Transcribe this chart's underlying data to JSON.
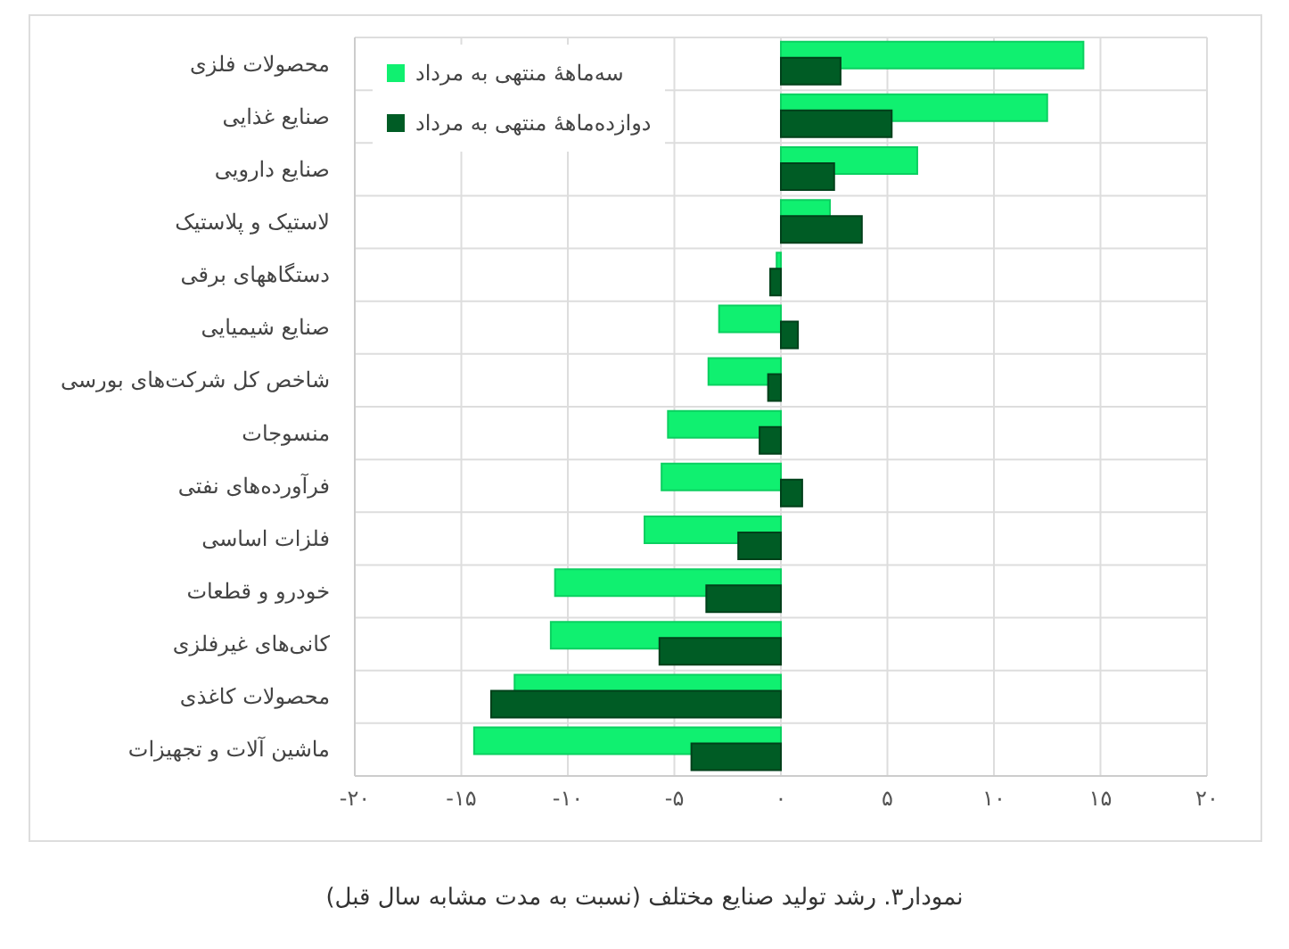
{
  "chart_data": {
    "type": "bar",
    "orientation": "horizontal",
    "title": "نمودار۳. رشد تولید صنایع مختلف (نسبت به مدت مشابه سال قبل)",
    "categories": [
      "محصولات فلزی",
      "صنایع غذایی",
      "صنایع دارویی",
      "لاستیک و پلاستیک",
      "دستگاههای برقی",
      "صنایع شیمیایی",
      "شاخص کل شرکت‌های بورسی",
      "منسوجات",
      "فرآورده‌های نفتی",
      "فلزات اساسی",
      "خودرو و قطعات",
      "کانی‌های غیرفلزی",
      "محصولات کاغذی",
      "ماشین آلات و تجهیزات"
    ],
    "series": [
      {
        "name": "سه‌ماههٔ منتهی به مرداد",
        "color": "#10f070",
        "values": [
          14.2,
          12.5,
          6.4,
          2.3,
          -0.2,
          -2.9,
          -3.4,
          -5.3,
          -5.6,
          -6.4,
          -10.6,
          -10.8,
          -12.5,
          -14.4
        ]
      },
      {
        "name": "دوازده‌ماههٔ منتهی به مرداد",
        "color": "#005c25",
        "values": [
          2.8,
          5.2,
          2.5,
          3.8,
          -0.5,
          0.8,
          -0.6,
          -1.0,
          1.0,
          -2.0,
          -3.5,
          -5.7,
          -13.6,
          -4.2
        ]
      }
    ],
    "xlim": [
      -20,
      20
    ],
    "xticks": [
      {
        "value": -20,
        "label": "-۲۰"
      },
      {
        "value": -15,
        "label": "-۱۵"
      },
      {
        "value": -10,
        "label": "-۱۰"
      },
      {
        "value": -5,
        "label": "-۵"
      },
      {
        "value": 0,
        "label": "۰"
      },
      {
        "value": 5,
        "label": "۵"
      },
      {
        "value": 10,
        "label": "۱۰"
      },
      {
        "value": 15,
        "label": "۱۵"
      },
      {
        "value": 20,
        "label": "۲۰"
      }
    ],
    "grid": true,
    "legend": "top left"
  }
}
